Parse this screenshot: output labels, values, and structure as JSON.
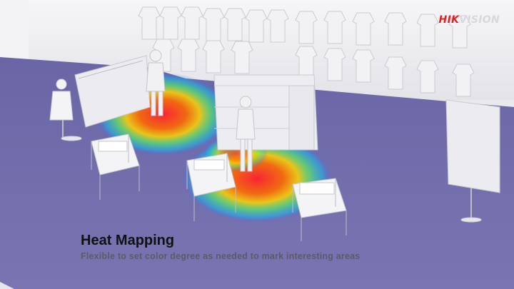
{
  "brand": {
    "logo_prefix": "HIK",
    "logo_suffix": "VISION"
  },
  "caption": {
    "title": "Heat Mapping",
    "subtitle": "Flexible to set color degree as needed to mark interesting areas"
  },
  "colors": {
    "floor": "#6f6aa8",
    "wall": "#f0f0f3",
    "heat_hot": "#ff2a2a",
    "heat_warm": "#ffb000",
    "heat_cool": "#00d0ff",
    "brand_red": "#e02020"
  }
}
